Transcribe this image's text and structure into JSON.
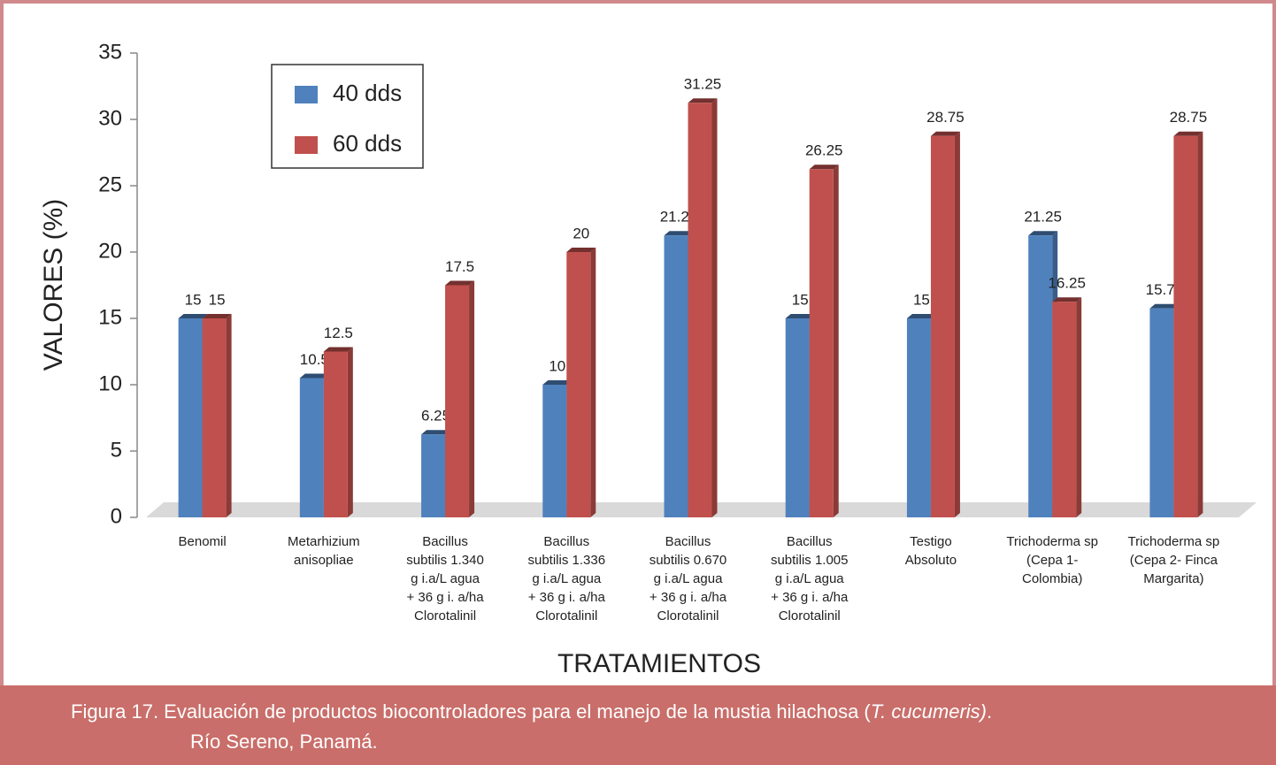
{
  "chart_data": {
    "type": "bar",
    "y_label": "VALORES (%)",
    "x_label": "TRATAMIENTOS",
    "categories": [
      [
        "Benomil"
      ],
      [
        "Metarhizium",
        "anisopliae"
      ],
      [
        "Bacillus",
        "subtilis 1.340",
        "g i.a/L agua",
        "+ 36 g i. a/ha",
        "Clorotalinil"
      ],
      [
        "Bacillus",
        "subtilis 1.336",
        "g i.a/L agua",
        "+ 36 g i. a/ha",
        "Clorotalinil"
      ],
      [
        "Bacillus",
        "subtilis 0.670",
        "g i.a/L agua",
        "+ 36 g i. a/ha",
        "Clorotalinil"
      ],
      [
        "Bacillus",
        "subtilis 1.005",
        "g i.a/L agua",
        "+ 36 g i. a/ha",
        "Clorotalinil"
      ],
      [
        "Testigo",
        "Absoluto"
      ],
      [
        "Trichoderma sp",
        "(Cepa 1-",
        "Colombia)"
      ],
      [
        "Trichoderma sp",
        "(Cepa 2- Finca",
        "Margarita)"
      ]
    ],
    "series": [
      {
        "name": "40 dds",
        "color": "#4f81bd",
        "values": [
          15,
          10.5,
          6.25,
          10,
          21.25,
          15,
          15,
          21.25,
          15.75
        ]
      },
      {
        "name": "60 dds",
        "color": "#c0504d",
        "values": [
          15,
          12.5,
          17.5,
          20,
          31.25,
          26.25,
          28.75,
          16.25,
          28.75
        ]
      }
    ],
    "ylim": [
      0,
      35
    ],
    "yticks": [
      0,
      5,
      10,
      15,
      20,
      25,
      30,
      35
    ],
    "legend": "upper left"
  },
  "caption": {
    "text": "Figura 17. Evaluación de productos biocontroladores para el manejo de la mustia hilachosa  (",
    "italic": "T. cucumeris)",
    "end": ".",
    "line2": "Río Sereno, Panamá."
  }
}
